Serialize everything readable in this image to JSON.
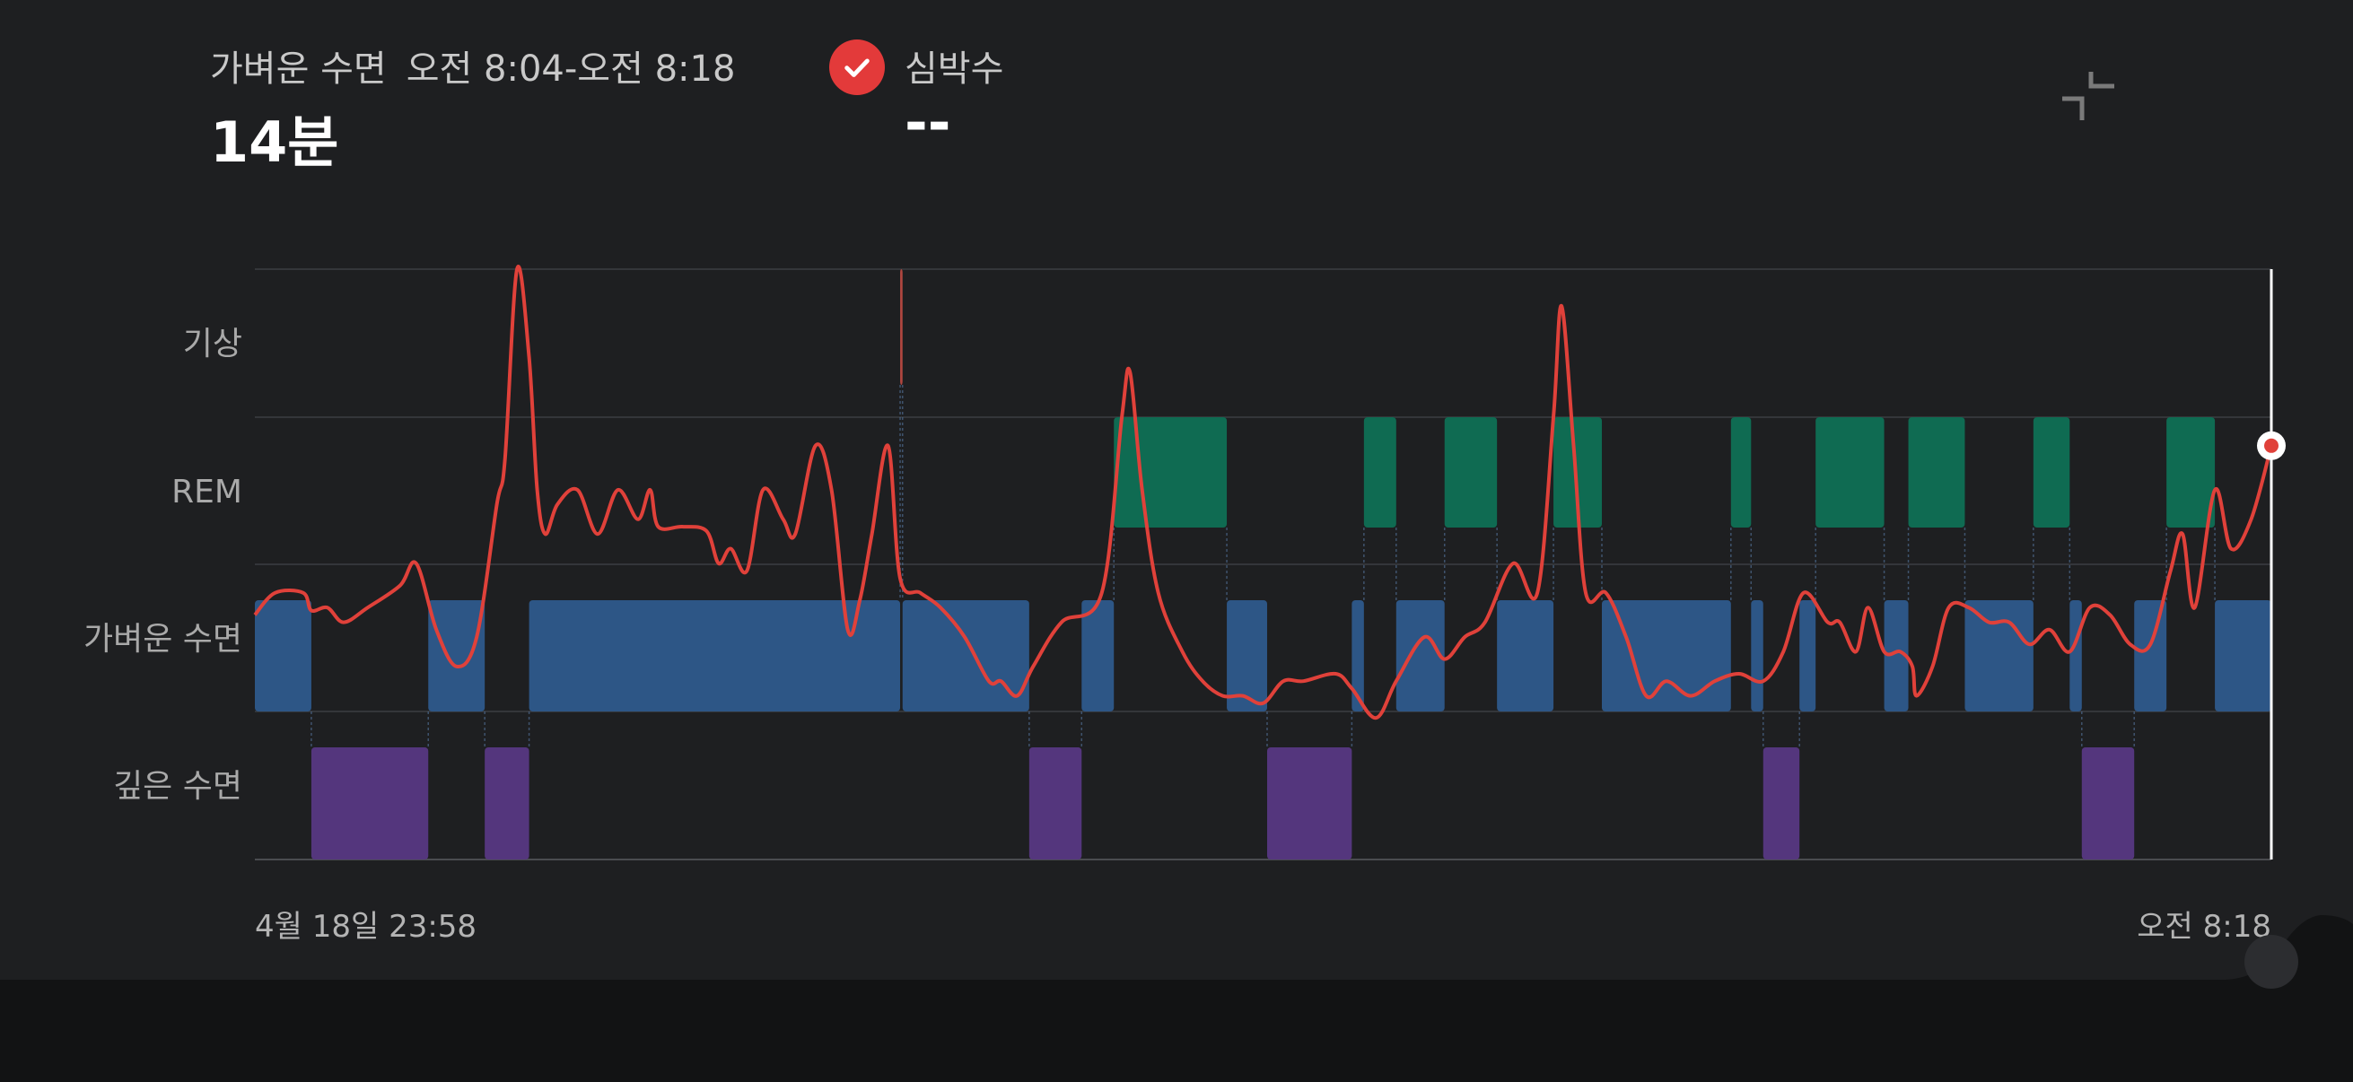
{
  "header": {
    "stage_label": "가벼운 수면",
    "time_range": "오전 8:04-오전 8:18",
    "duration": "14분",
    "heart_rate_label": "심박수",
    "heart_rate_value": "--"
  },
  "icons": {
    "check": "check-circle-icon",
    "collapse": "collapse-icon"
  },
  "colors": {
    "background": "#1e1f21",
    "rem": "#0f6b52",
    "light": "#2d5686",
    "deep": "#54367d",
    "heart_line": "#e0413a"
  },
  "chart_data": {
    "type": "sleep-stages-with-heart-rate",
    "y_levels": [
      "기상",
      "REM",
      "가벼운 수면",
      "깊은 수면"
    ],
    "x_start_label": "4월 18일 23:58",
    "x_end_label": "오전 8:18",
    "x_range_minutes": [
      0,
      500
    ],
    "stage_segments": [
      {
        "stage": "light",
        "start": 0,
        "end": 14
      },
      {
        "stage": "deep",
        "start": 14,
        "end": 43
      },
      {
        "stage": "light",
        "start": 43,
        "end": 57
      },
      {
        "stage": "deep",
        "start": 57,
        "end": 68
      },
      {
        "stage": "light",
        "start": 68,
        "end": 160
      },
      {
        "stage": "awake",
        "start": 160,
        "end": 160.6
      },
      {
        "stage": "light",
        "start": 160.6,
        "end": 192
      },
      {
        "stage": "deep",
        "start": 192,
        "end": 205
      },
      {
        "stage": "light",
        "start": 205,
        "end": 213
      },
      {
        "stage": "rem",
        "start": 213,
        "end": 241
      },
      {
        "stage": "light",
        "start": 241,
        "end": 251
      },
      {
        "stage": "deep",
        "start": 251,
        "end": 272
      },
      {
        "stage": "light",
        "start": 272,
        "end": 275
      },
      {
        "stage": "rem",
        "start": 275,
        "end": 283
      },
      {
        "stage": "light",
        "start": 283,
        "end": 295
      },
      {
        "stage": "rem",
        "start": 295,
        "end": 308
      },
      {
        "stage": "light",
        "start": 308,
        "end": 322
      },
      {
        "stage": "rem",
        "start": 322,
        "end": 334
      },
      {
        "stage": "light",
        "start": 334,
        "end": 366
      },
      {
        "stage": "rem",
        "start": 366,
        "end": 371
      },
      {
        "stage": "light",
        "start": 371,
        "end": 374
      },
      {
        "stage": "deep",
        "start": 374,
        "end": 383
      },
      {
        "stage": "light",
        "start": 383,
        "end": 387
      },
      {
        "stage": "rem",
        "start": 387,
        "end": 404
      },
      {
        "stage": "light",
        "start": 404,
        "end": 410
      },
      {
        "stage": "rem",
        "start": 410,
        "end": 424
      },
      {
        "stage": "light",
        "start": 424,
        "end": 441
      },
      {
        "stage": "rem",
        "start": 441,
        "end": 450
      },
      {
        "stage": "light",
        "start": 450,
        "end": 453
      },
      {
        "stage": "deep",
        "start": 453,
        "end": 466
      },
      {
        "stage": "light",
        "start": 466,
        "end": 474
      },
      {
        "stage": "rem",
        "start": 474,
        "end": 486
      },
      {
        "stage": "light",
        "start": 486,
        "end": 500
      }
    ],
    "heart_rate_curve": [
      [
        0,
        2.35
      ],
      [
        5,
        2.2
      ],
      [
        12,
        2.2
      ],
      [
        14,
        2.32
      ],
      [
        18,
        2.3
      ],
      [
        22,
        2.4
      ],
      [
        28,
        2.3
      ],
      [
        36,
        2.15
      ],
      [
        40,
        2.0
      ],
      [
        45,
        2.45
      ],
      [
        50,
        2.7
      ],
      [
        55,
        2.5
      ],
      [
        60,
        1.6
      ],
      [
        62,
        1.3
      ],
      [
        65,
        0.0
      ],
      [
        68,
        0.6
      ],
      [
        70,
        1.5
      ],
      [
        72,
        1.8
      ],
      [
        75,
        1.6
      ],
      [
        80,
        1.5
      ],
      [
        85,
        1.8
      ],
      [
        90,
        1.5
      ],
      [
        95,
        1.7
      ],
      [
        98,
        1.5
      ],
      [
        100,
        1.75
      ],
      [
        106,
        1.75
      ],
      [
        112,
        1.78
      ],
      [
        115,
        2.0
      ],
      [
        118,
        1.9
      ],
      [
        122,
        2.05
      ],
      [
        126,
        1.5
      ],
      [
        131,
        1.7
      ],
      [
        134,
        1.8
      ],
      [
        139,
        1.2
      ],
      [
        143,
        1.5
      ],
      [
        147,
        2.45
      ],
      [
        150,
        2.25
      ],
      [
        153,
        1.8
      ],
      [
        157,
        1.2
      ],
      [
        160,
        2.1
      ],
      [
        165,
        2.2
      ],
      [
        170,
        2.3
      ],
      [
        176,
        2.5
      ],
      [
        182,
        2.8
      ],
      [
        185,
        2.8
      ],
      [
        189,
        2.9
      ],
      [
        193,
        2.7
      ],
      [
        200,
        2.4
      ],
      [
        210,
        2.2
      ],
      [
        215,
        1.0
      ],
      [
        217,
        0.7
      ],
      [
        220,
        1.5
      ],
      [
        224,
        2.2
      ],
      [
        230,
        2.6
      ],
      [
        235,
        2.8
      ],
      [
        240,
        2.9
      ],
      [
        245,
        2.9
      ],
      [
        250,
        2.95
      ],
      [
        255,
        2.8
      ],
      [
        260,
        2.8
      ],
      [
        268,
        2.75
      ],
      [
        272,
        2.85
      ],
      [
        278,
        3.05
      ],
      [
        283,
        2.8
      ],
      [
        290,
        2.5
      ],
      [
        295,
        2.65
      ],
      [
        300,
        2.5
      ],
      [
        305,
        2.4
      ],
      [
        312,
        2.0
      ],
      [
        318,
        2.2
      ],
      [
        322,
        1.0
      ],
      [
        324,
        0.25
      ],
      [
        327,
        1.2
      ],
      [
        330,
        2.2
      ],
      [
        335,
        2.2
      ],
      [
        340,
        2.5
      ],
      [
        345,
        2.9
      ],
      [
        350,
        2.8
      ],
      [
        356,
        2.9
      ],
      [
        362,
        2.8
      ],
      [
        368,
        2.75
      ],
      [
        374,
        2.8
      ],
      [
        379,
        2.6
      ],
      [
        384,
        2.2
      ],
      [
        390,
        2.4
      ],
      [
        393,
        2.4
      ],
      [
        397,
        2.6
      ],
      [
        400,
        2.3
      ],
      [
        404,
        2.6
      ],
      [
        408,
        2.6
      ],
      [
        411,
        2.7
      ],
      [
        412,
        2.9
      ],
      [
        416,
        2.7
      ],
      [
        420,
        2.3
      ],
      [
        425,
        2.3
      ],
      [
        430,
        2.4
      ],
      [
        435,
        2.4
      ],
      [
        440,
        2.55
      ],
      [
        445,
        2.45
      ],
      [
        450,
        2.6
      ],
      [
        455,
        2.3
      ],
      [
        460,
        2.35
      ],
      [
        465,
        2.55
      ],
      [
        470,
        2.55
      ],
      [
        475,
        2.05
      ],
      [
        478,
        1.8
      ],
      [
        481,
        2.3
      ],
      [
        486,
        1.5
      ],
      [
        490,
        1.9
      ],
      [
        495,
        1.7
      ],
      [
        500,
        1.2
      ]
    ],
    "current_marker": {
      "time": 500,
      "level": 1.2
    }
  }
}
